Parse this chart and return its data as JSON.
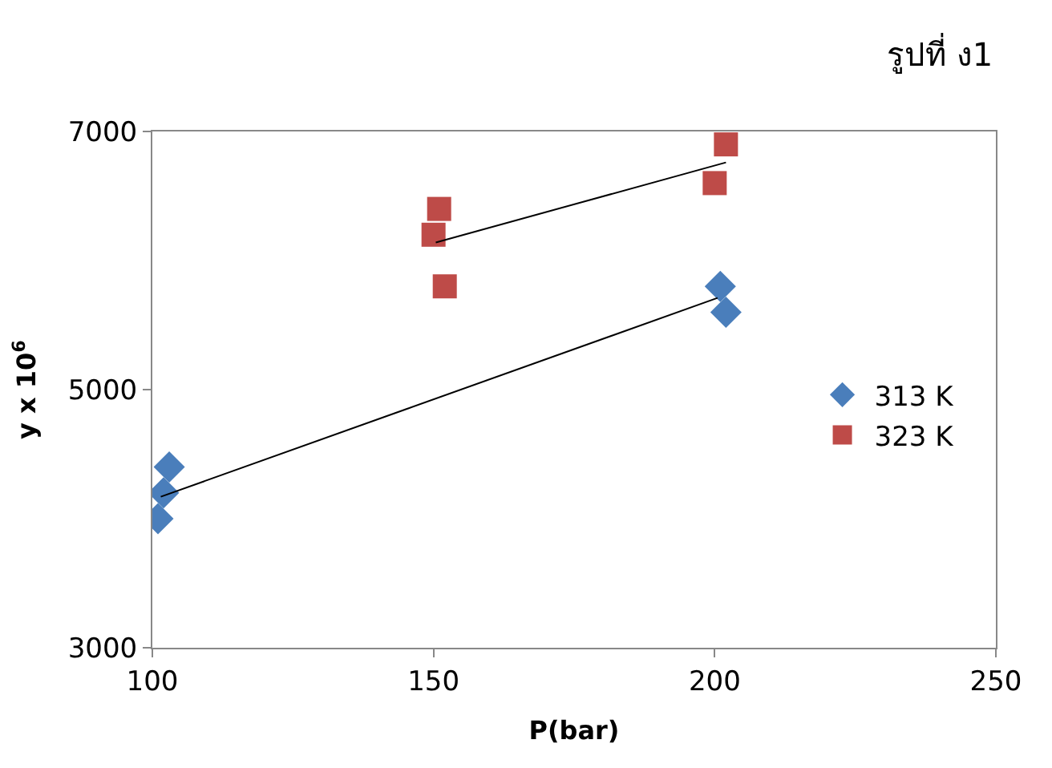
{
  "chart_data": {
    "type": "scatter",
    "xlabel": "P(bar)",
    "ylabel": "y x 10$^{6}$",
    "annotations": [
      "รูปที่ ง1"
    ],
    "xlim": [
      100,
      250
    ],
    "xticks": [
      100,
      150,
      200,
      250
    ],
    "ylim": [
      3000,
      7000
    ],
    "yticks": [
      3000,
      5000,
      7000
    ],
    "legend": "right",
    "series": [
      {
        "name": "313 K",
        "color": "#4a7ebb",
        "marker": "diamond",
        "x": [
          101,
          102,
          103,
          201,
          202
        ],
        "values": [
          4000,
          4200,
          4400,
          5800,
          5600
        ]
      },
      {
        "name": "323 K",
        "color": "#be4b48",
        "marker": "square",
        "x": [
          150,
          151,
          152,
          200,
          202
        ],
        "values": [
          6200,
          6400,
          5800,
          6600,
          6900
        ]
      },
      {
        "type": "line",
        "color": "#000000",
        "x": [
          101.5,
          200.5
        ],
        "values": [
          4170,
          5710
        ]
      },
      {
        "type": "line",
        "color": "#000000",
        "x": [
          150.4,
          202
        ],
        "values": [
          6140,
          6760
        ]
      }
    ]
  }
}
